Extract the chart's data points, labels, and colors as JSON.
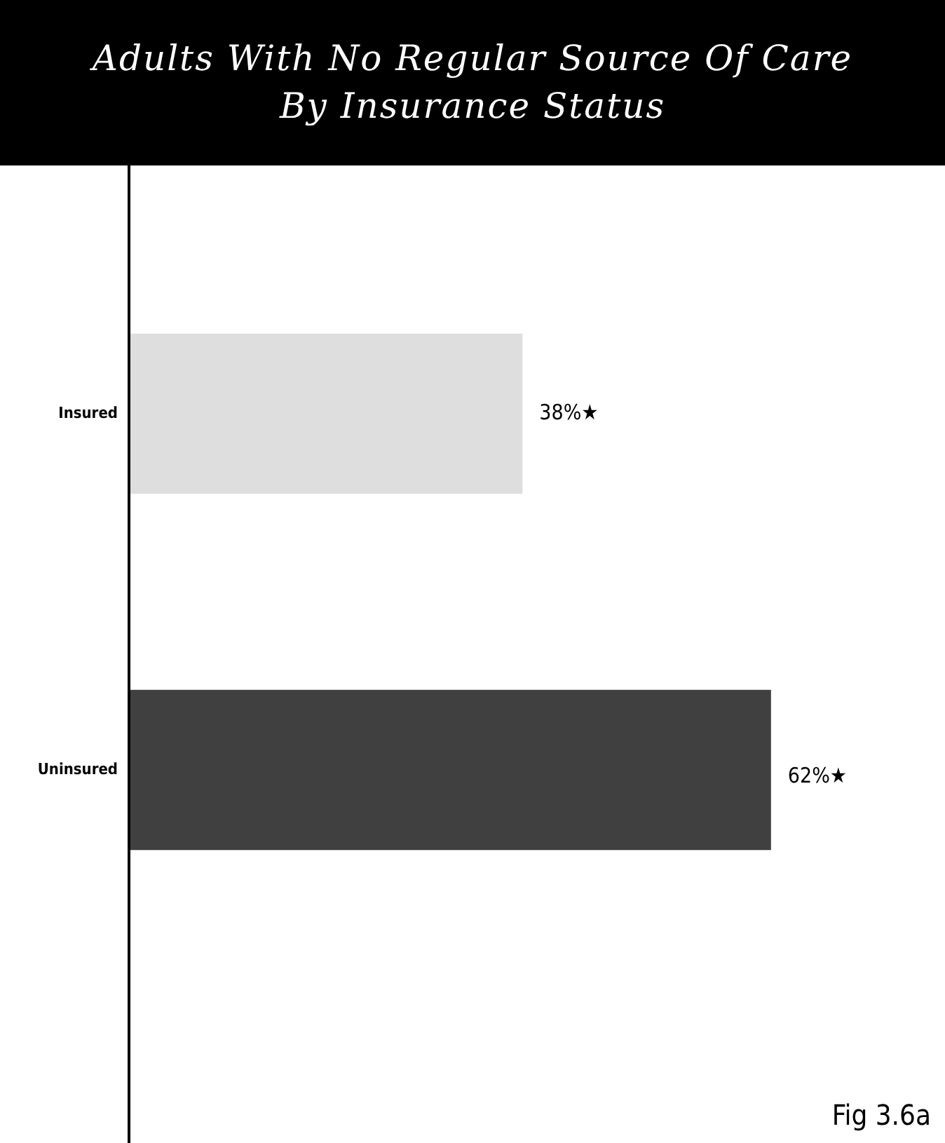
{
  "chart_data": {
    "type": "bar",
    "orientation": "horizontal",
    "title": "Adults With No Regular Source Of Care\nBy Insurance Status",
    "categories": [
      "Insured",
      "Uninsured"
    ],
    "values": [
      38,
      62
    ],
    "colors": [
      "#dedede",
      "#404040"
    ],
    "value_labels": [
      "38%★",
      "62%★"
    ],
    "tick_labels": "y",
    "grid": false,
    "legend": false,
    "annotations": [
      "Fig 3.6a"
    ]
  }
}
